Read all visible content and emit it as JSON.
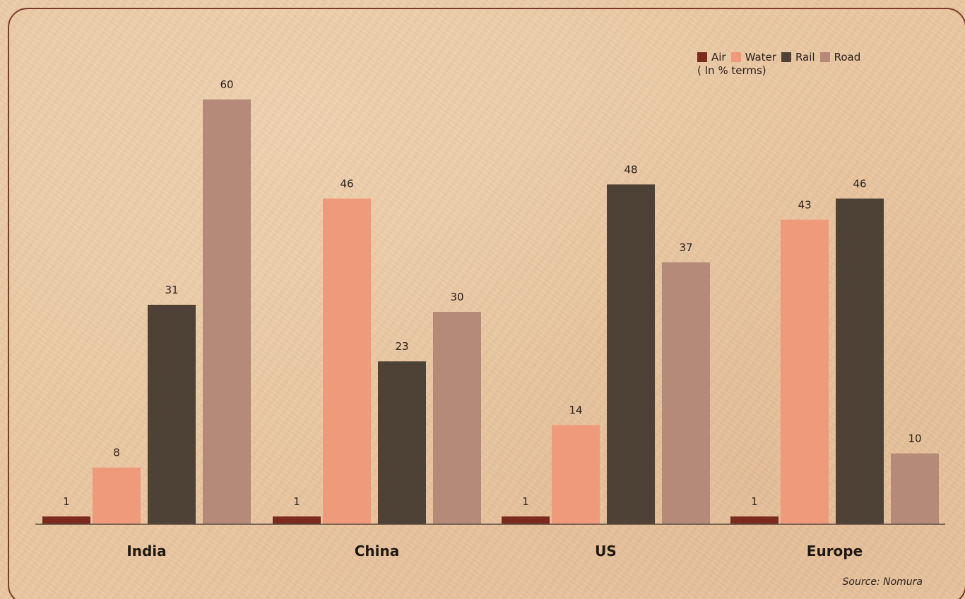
{
  "chart_data": {
    "type": "bar",
    "categories": [
      "India",
      "China",
      "US",
      "Europe"
    ],
    "series": [
      {
        "name": "Air",
        "values": [
          1,
          1,
          1,
          1
        ],
        "color": "#7b2a1e"
      },
      {
        "name": "Water",
        "values": [
          8,
          46,
          14,
          43
        ],
        "color": "#f09a7c"
      },
      {
        "name": "Rail",
        "values": [
          31,
          23,
          48,
          46
        ],
        "color": "#4e4135"
      },
      {
        "name": "Road",
        "values": [
          60,
          30,
          37,
          10
        ],
        "color": "#b58a78"
      }
    ],
    "unit_note": "( In % terms)",
    "ylim": [
      0,
      60
    ],
    "grid": false,
    "legend_position": "top-right"
  },
  "source": "Source: Nomura"
}
